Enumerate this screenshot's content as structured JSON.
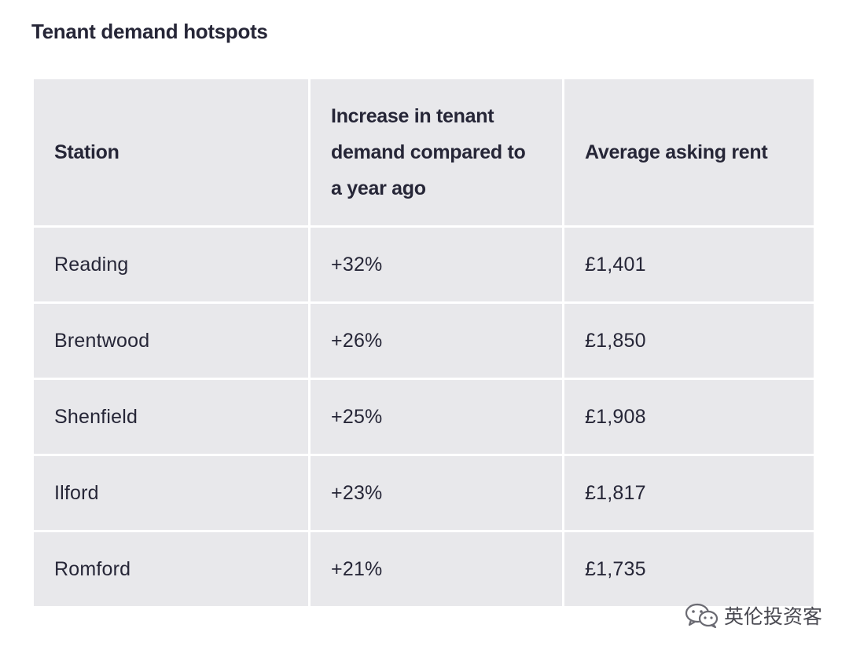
{
  "title": "Tenant demand hotspots",
  "table": {
    "headers": [
      "Station",
      "Increase in tenant demand compared to a year ago",
      "Average asking rent"
    ],
    "rows": [
      [
        "Reading",
        "+32%",
        "£1,401"
      ],
      [
        "Brentwood",
        "+26%",
        "£1,850"
      ],
      [
        "Shenfield",
        "+25%",
        "£1,908"
      ],
      [
        "Ilford",
        "+23%",
        "£1,817"
      ],
      [
        "Romford",
        "+21%",
        "£1,735"
      ]
    ]
  },
  "watermark": {
    "icon": "wechat-icon",
    "text": "英伦投资客"
  },
  "colors": {
    "cell_background": "#e8e8eb",
    "text": "#262637",
    "page_background": "#ffffff"
  }
}
